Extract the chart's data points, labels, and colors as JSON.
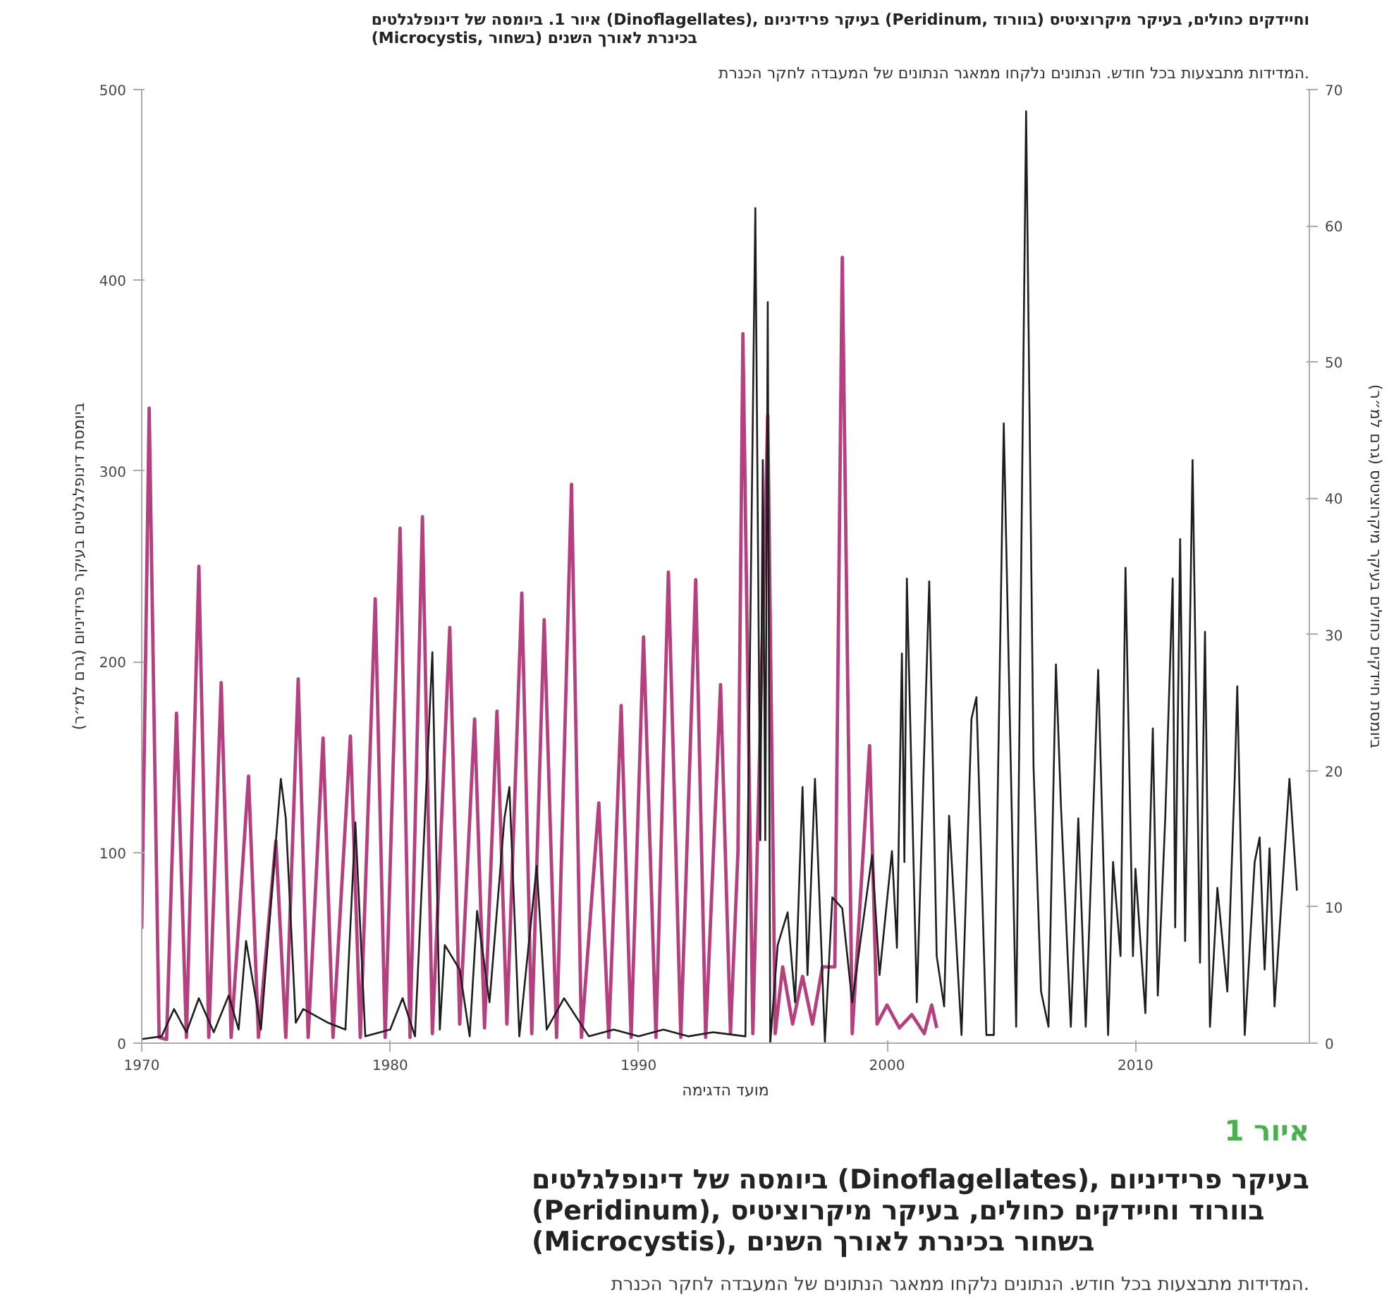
{
  "chart_data": {
    "type": "line",
    "title": "איור 1. ביומסה של דינופלגלטים (Dinoflagellates), בעיקר פרידיניום (Peridinum, בוורוד) וחיידקים כחולים, בעיקר מיקרוציטיס (Microcystis, בשחור) בכינרת לאורך השנים",
    "subtitle": "המדידות מתבצעות בכל חודש. הנתונים נלקחו ממאגר הנתונים של המעבדה לחקר הכנרת.",
    "xlabel": "מועד הדגימה",
    "ylabel": "ביומסת דינופלגלטים בעיקר פרידיניום (גרם למ״ר)",
    "y2label": "ביומסת חיידקים כחולים בעיקר מיקרוציטיס (גרם למ״ר)",
    "annotations": [
      "איור 1",
      "ביומסה של דינופלגלטים (Dinoflagellates), בעיקר פרידיניום (Peridinum), בוורוד וחיידקים כחולים, בעיקר מיקרוציטיס (Microcystis), בשחור בכינרת לאורך השנים",
      "המדידות מתבצעות בכל חודש. הנתונים נלקחו ממאגר הנתונים של המעבדה לחקר הכנרת."
    ],
    "xlim": [
      1970,
      2017
    ],
    "xticks": [
      1970,
      1980,
      1990,
      2000,
      2010
    ],
    "ylim": [
      0,
      500
    ],
    "yticks": [
      0,
      100,
      200,
      300,
      400,
      500
    ],
    "y2lim": [
      0,
      70
    ],
    "y2ticks": [
      0,
      10,
      20,
      30,
      40,
      50,
      60,
      70
    ],
    "grid": false,
    "series": [
      {
        "color": "#b5407f",
        "x": [
          1970.0,
          1970.3,
          1970.7,
          1971.0,
          1971.4,
          1971.8,
          1972.3,
          1972.7,
          1973.2,
          1973.6,
          1974.3,
          1974.7,
          1975.4,
          1975.8,
          1976.3,
          1976.7,
          1977.3,
          1977.7,
          1978.4,
          1978.8,
          1979.4,
          1979.8,
          1980.4,
          1980.8,
          1981.3,
          1981.7,
          1982.4,
          1982.8,
          1983.4,
          1983.8,
          1984.3,
          1984.7,
          1985.3,
          1985.7,
          1986.2,
          1986.7,
          1987.3,
          1987.7,
          1988.4,
          1988.8,
          1989.3,
          1989.7,
          1990.2,
          1990.7,
          1991.2,
          1991.7,
          1992.3,
          1992.7,
          1993.3,
          1993.7,
          1994.0,
          1994.2,
          1994.6,
          1995.2,
          1995.5,
          1995.8,
          1996.2,
          1996.6,
          1997.0,
          1997.4,
          1997.9,
          1998.2,
          1998.6,
          1999.3,
          1999.6,
          2000.0,
          2000.5,
          2001.0,
          2001.5,
          2001.8,
          2002.0
        ],
        "values": [
          60,
          333,
          3,
          2,
          173,
          3,
          250,
          3,
          189,
          3,
          140,
          3,
          106,
          3,
          191,
          3,
          160,
          3,
          161,
          3,
          233,
          3,
          270,
          3,
          276,
          5,
          218,
          10,
          170,
          8,
          174,
          10,
          236,
          5,
          222,
          3,
          293,
          3,
          126,
          3,
          177,
          3,
          213,
          3,
          247,
          3,
          243,
          3,
          188,
          5,
          100,
          372,
          5,
          329,
          5,
          40,
          10,
          35,
          10,
          40,
          40,
          412,
          5,
          156,
          10,
          20,
          8,
          15,
          5,
          20,
          8
        ]
      },
      {
        "color": "#1e1e1e",
        "axis": "y2",
        "x": [
          1970.0,
          1970.8,
          1971.3,
          1971.8,
          1972.3,
          1972.9,
          1973.5,
          1973.9,
          1974.2,
          1974.8,
          1975.6,
          1975.8,
          1976.2,
          1976.5,
          1977.5,
          1978.2,
          1978.6,
          1979.0,
          1980.0,
          1980.5,
          1981.0,
          1981.7,
          1982.0,
          1982.2,
          1982.8,
          1983.2,
          1983.5,
          1984.0,
          1984.6,
          1984.8,
          1985.2,
          1985.9,
          1986.3,
          1987.0,
          1988.0,
          1989.0,
          1990.0,
          1991.0,
          1992.0,
          1993.0,
          1994.3,
          1994.7,
          1994.9,
          1995.0,
          1995.1,
          1995.2,
          1995.3,
          1995.6,
          1996.0,
          1996.3,
          1996.6,
          1996.8,
          1997.1,
          1997.5,
          1997.8,
          1998.2,
          1998.6,
          1999.4,
          1999.7,
          2000.2,
          2000.4,
          2000.6,
          2000.7,
          2000.8,
          2001.2,
          2001.7,
          2002.0,
          2002.3,
          2002.5,
          2003.0,
          2003.4,
          2003.6,
          2004.0,
          2004.3,
          2004.7,
          2005.2,
          2005.6,
          2005.9,
          2006.2,
          2006.5,
          2006.8,
          2007.0,
          2007.4,
          2007.7,
          2008.0,
          2008.5,
          2008.9,
          2009.1,
          2009.4,
          2009.6,
          2009.9,
          2010.0,
          2010.4,
          2010.7,
          2010.9,
          2011.2,
          2011.5,
          2011.6,
          2011.8,
          2012.0,
          2012.3,
          2012.6,
          2012.8,
          2013.0,
          2013.3,
          2013.7,
          2014.0,
          2014.1,
          2014.4,
          2014.8,
          2015.0,
          2015.2,
          2015.4,
          2015.6,
          2016.2,
          2016.5
        ],
        "values": [
          0.3,
          0.5,
          2.5,
          0.8,
          3.3,
          0.8,
          3.5,
          1,
          7.5,
          1,
          19.4,
          16.5,
          1.5,
          2.5,
          1.5,
          1,
          16.2,
          0.5,
          1,
          3.3,
          0.5,
          28.7,
          1,
          7.2,
          5.4,
          0.5,
          9.7,
          3,
          16.5,
          18.8,
          0.5,
          13,
          1,
          3.3,
          0.5,
          1,
          0.5,
          1,
          0.5,
          0.8,
          0.5,
          61.3,
          14.9,
          42.8,
          14.9,
          54.4,
          0,
          7.2,
          9.6,
          3,
          18.8,
          5,
          19.4,
          0.1,
          10.7,
          9.9,
          3,
          13.8,
          5,
          14.1,
          7,
          28.6,
          13.3,
          34.1,
          3,
          33.9,
          6.4,
          2.7,
          16.7,
          0.6,
          23.8,
          25.4,
          0.6,
          0.6,
          45.5,
          1.2,
          68.4,
          20.2,
          3.8,
          1.2,
          27.8,
          17.5,
          1.2,
          16.5,
          1.2,
          27.4,
          0.6,
          13.3,
          6.4,
          34.9,
          6.4,
          12.8,
          2.2,
          23.1,
          3.5,
          16.5,
          34.1,
          8.5,
          37,
          7.5,
          42.8,
          5.9,
          30.2,
          1.2,
          11.4,
          3.8,
          19.6,
          26.2,
          0.6,
          13.3,
          15.1,
          5.4,
          14.3,
          2.7,
          19.4,
          11.2
        ]
      }
    ]
  }
}
